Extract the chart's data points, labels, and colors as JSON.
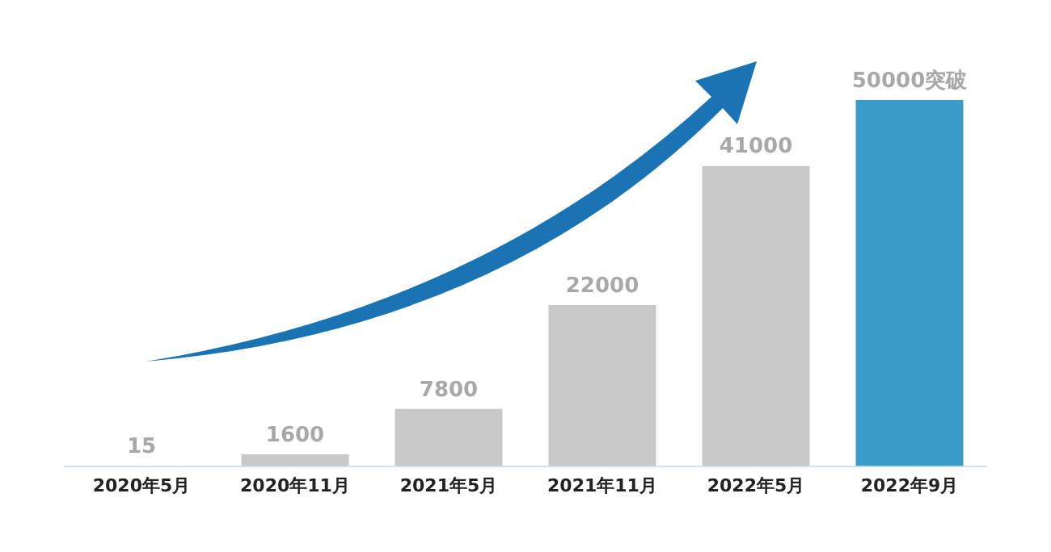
{
  "chart_data": {
    "type": "bar",
    "categories": [
      "2020年5月",
      "2020年11月",
      "2021年5月",
      "2021年11月",
      "2022年5月",
      "2022年9月"
    ],
    "values": [
      15,
      1600,
      7800,
      22000,
      41000,
      50000
    ],
    "colors": [
      "#c8c8c8",
      "#c8c8c8",
      "#c8c8c8",
      "#c8c8c8",
      "#c8c8c8",
      "#3c9cc8"
    ],
    "value_labels": [
      "15",
      "1600",
      "7800",
      "22000",
      "41000",
      "50000突破"
    ],
    "grid": false,
    "legend": false
  }
}
